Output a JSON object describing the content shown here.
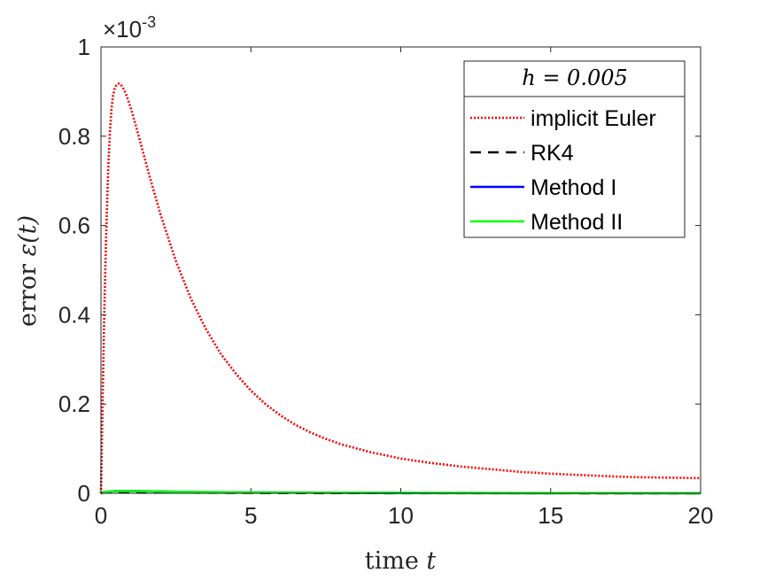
{
  "chart_data": {
    "type": "line",
    "xlabel_text": "time",
    "xlabel_var": "t",
    "ylabel_text": "error",
    "ylabel_var": "ε(t)",
    "exponent_base": "×10",
    "exponent_power": "-3",
    "xlim": [
      0,
      20
    ],
    "ylim": [
      0,
      1
    ],
    "xticks": [
      0,
      5,
      10,
      15,
      20
    ],
    "xtick_labels": [
      "0",
      "5",
      "10",
      "15",
      "20"
    ],
    "yticks": [
      0,
      0.2,
      0.4,
      0.6,
      0.8,
      1
    ],
    "ytick_labels": [
      "0",
      "0.2",
      "0.4",
      "0.6",
      "0.8",
      "1"
    ],
    "legend_title": "h = 0.005",
    "legend_position": "top-right",
    "grid": false,
    "series": [
      {
        "name": "implicit Euler",
        "color": "#ff0000",
        "style": "dotted",
        "x": [
          0,
          0.02,
          0.05,
          0.1,
          0.15,
          0.2,
          0.25,
          0.3,
          0.35,
          0.4,
          0.45,
          0.5,
          0.55,
          0.6,
          0.65,
          0.7,
          0.8,
          0.9,
          1.0,
          1.2,
          1.4,
          1.6,
          1.8,
          2.0,
          2.5,
          3.0,
          3.5,
          4.0,
          4.5,
          5.0,
          5.5,
          6.0,
          6.5,
          7.0,
          7.5,
          8.0,
          9.0,
          10.0,
          11.0,
          12.0,
          13.0,
          14.0,
          15.0,
          16.0,
          17.0,
          18.0,
          19.0,
          20.0
        ],
        "y": [
          0,
          0.08,
          0.19,
          0.37,
          0.52,
          0.64,
          0.74,
          0.81,
          0.86,
          0.89,
          0.905,
          0.913,
          0.917,
          0.918,
          0.916,
          0.912,
          0.9,
          0.882,
          0.862,
          0.815,
          0.765,
          0.715,
          0.668,
          0.622,
          0.52,
          0.436,
          0.368,
          0.312,
          0.268,
          0.23,
          0.199,
          0.174,
          0.153,
          0.136,
          0.122,
          0.11,
          0.092,
          0.078,
          0.068,
          0.06,
          0.054,
          0.048,
          0.044,
          0.041,
          0.038,
          0.036,
          0.035,
          0.034
        ]
      },
      {
        "name": "RK4",
        "color": "#000000",
        "style": "dashed",
        "x": [
          0,
          0.1,
          0.5,
          1,
          2,
          3,
          5,
          10,
          20
        ],
        "y": [
          0,
          0.002,
          0.003,
          0.003,
          0.002,
          0.0015,
          0.001,
          0.0004,
          0.0001
        ]
      },
      {
        "name": "Method I",
        "color": "#0000ff",
        "style": "solid",
        "x": [
          0,
          0.1,
          0.5,
          1,
          2,
          3,
          5,
          10,
          20
        ],
        "y": [
          0,
          0.003,
          0.005,
          0.005,
          0.004,
          0.003,
          0.002,
          0.0008,
          0.0002
        ]
      },
      {
        "name": "Method II",
        "color": "#00ff00",
        "style": "solid",
        "x": [
          0,
          0.1,
          0.5,
          1,
          2,
          3,
          5,
          10,
          20
        ],
        "y": [
          0,
          0.003,
          0.005,
          0.005,
          0.004,
          0.003,
          0.002,
          0.0008,
          0.0002
        ]
      }
    ]
  }
}
